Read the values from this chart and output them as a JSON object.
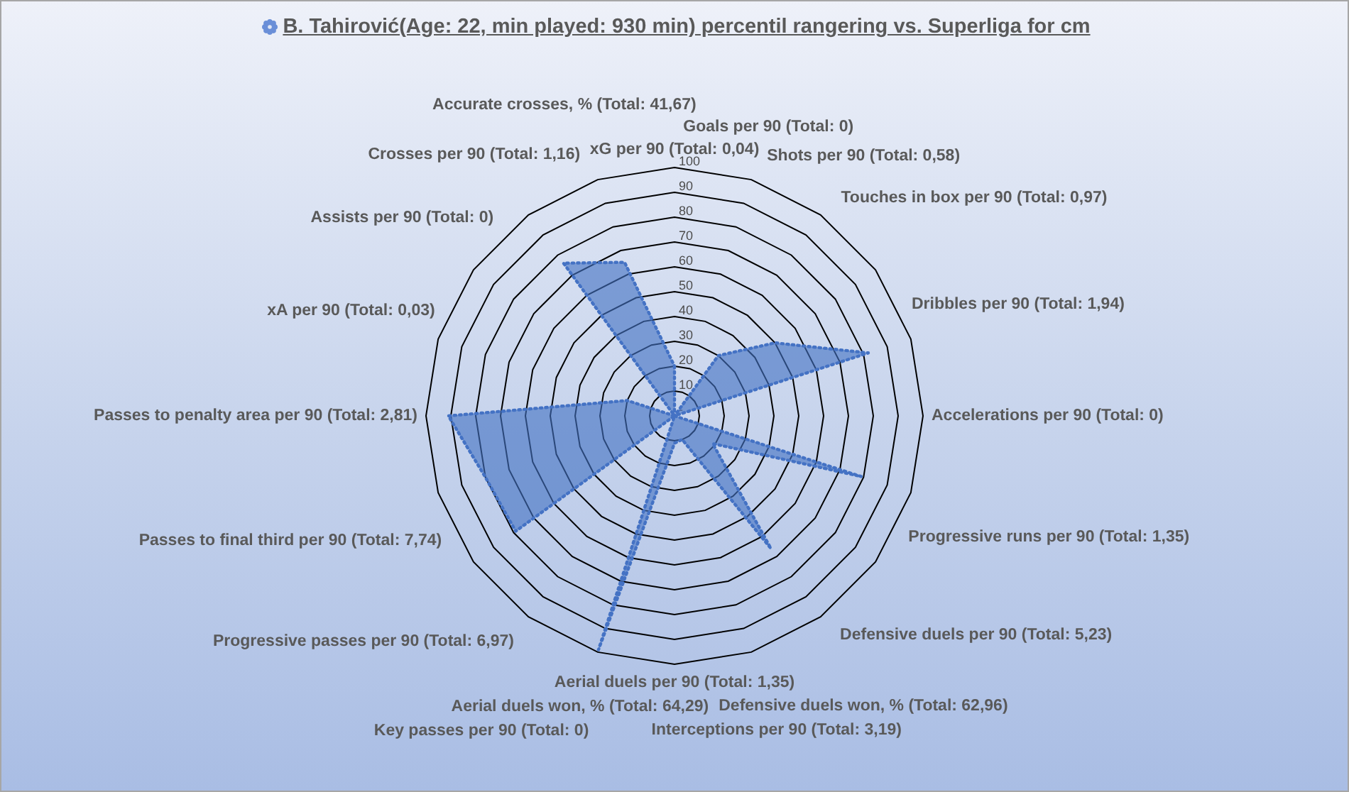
{
  "chart_data": {
    "type": "radar",
    "title": "B. Tahirović(Age: 22, min played: 930 min) percentil rangering vs. Superliga for cm",
    "categories": [
      "xG per 90 (Total: 0,04)",
      "Goals per 90 (Total: 0)",
      "Shots per 90 (Total: 0,58)",
      "Touches in box per 90 (Total: 0,97)",
      "Dribbles per 90 (Total: 1,94)",
      "Accelerations per 90 (Total: 0)",
      "Progressive runs per 90 (Total: 1,35)",
      "Defensive duels per 90 (Total: 5,23)",
      "Defensive duels won, % (Total: 62,96)",
      "Interceptions per 90 (Total: 3,19)",
      "Aerial duels per 90 (Total: 1,35)",
      "Aerial duels won, % (Total: 64,29)",
      "Key passes per 90 (Total: 0)",
      "Progressive passes per 90 (Total: 6,97)",
      "Passes to final third per 90 (Total: 7,74)",
      "Passes to penalty area per 90 (Total: 2,81)",
      "xA per 90 (Total: 0,03)",
      "Assists per 90 (Total: 0)",
      "Crosses per 90 (Total: 1,16)",
      "Accurate crosses, % (Total: 41,67)"
    ],
    "series": [
      {
        "color": "#4472c4",
        "values": [
          20,
          0,
          30,
          50,
          82,
          0,
          79,
          19,
          66,
          10,
          11,
          99,
          0,
          79,
          80,
          91,
          20,
          0,
          76,
          65
        ]
      }
    ],
    "ylim": [
      0,
      100
    ],
    "yticks": [
      {
        "value": 0,
        "label": "-"
      },
      10,
      20,
      30,
      40,
      50,
      60,
      70,
      80,
      90,
      100
    ],
    "grid": true,
    "marker": "none",
    "line_style": "dotted"
  }
}
